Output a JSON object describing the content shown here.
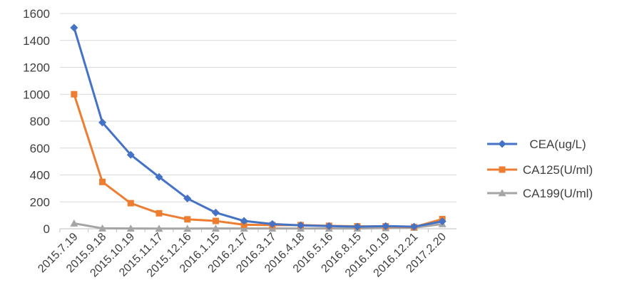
{
  "chart_data": {
    "type": "line",
    "categories": [
      "2015.7.19",
      "2015.9.18",
      "2015.10.19",
      "2015.11.17",
      "2015.12.16",
      "2016.1.15",
      "2016.2.17",
      "2016.3.17",
      "2016.4.18",
      "2016.5.16",
      "2016.8.15",
      "2016.10.19",
      "2016.12.21",
      "2017.2.20"
    ],
    "ylim": [
      0,
      1600
    ],
    "yticks": [
      0,
      200,
      400,
      600,
      800,
      1000,
      1200,
      1400,
      1600
    ],
    "grid": true,
    "legend_position": "right",
    "series": [
      {
        "name": "CEA(ug/L)",
        "color": "#4472C4",
        "marker": "diamond",
        "values": [
          1495,
          790,
          550,
          385,
          225,
          120,
          58,
          35,
          25,
          20,
          15,
          20,
          15,
          55
        ]
      },
      {
        "name": "CA125(U/ml)",
        "color": "#ED7D31",
        "marker": "square",
        "values": [
          1000,
          348,
          190,
          115,
          70,
          58,
          30,
          27,
          27,
          22,
          18,
          18,
          12,
          72
        ]
      },
      {
        "name": "CA199(U/ml)",
        "color": "#A5A5A5",
        "marker": "triangle",
        "values": [
          40,
          3,
          2,
          1,
          1,
          2,
          2,
          2,
          2,
          2,
          2,
          5,
          8,
          35
        ]
      }
    ]
  }
}
